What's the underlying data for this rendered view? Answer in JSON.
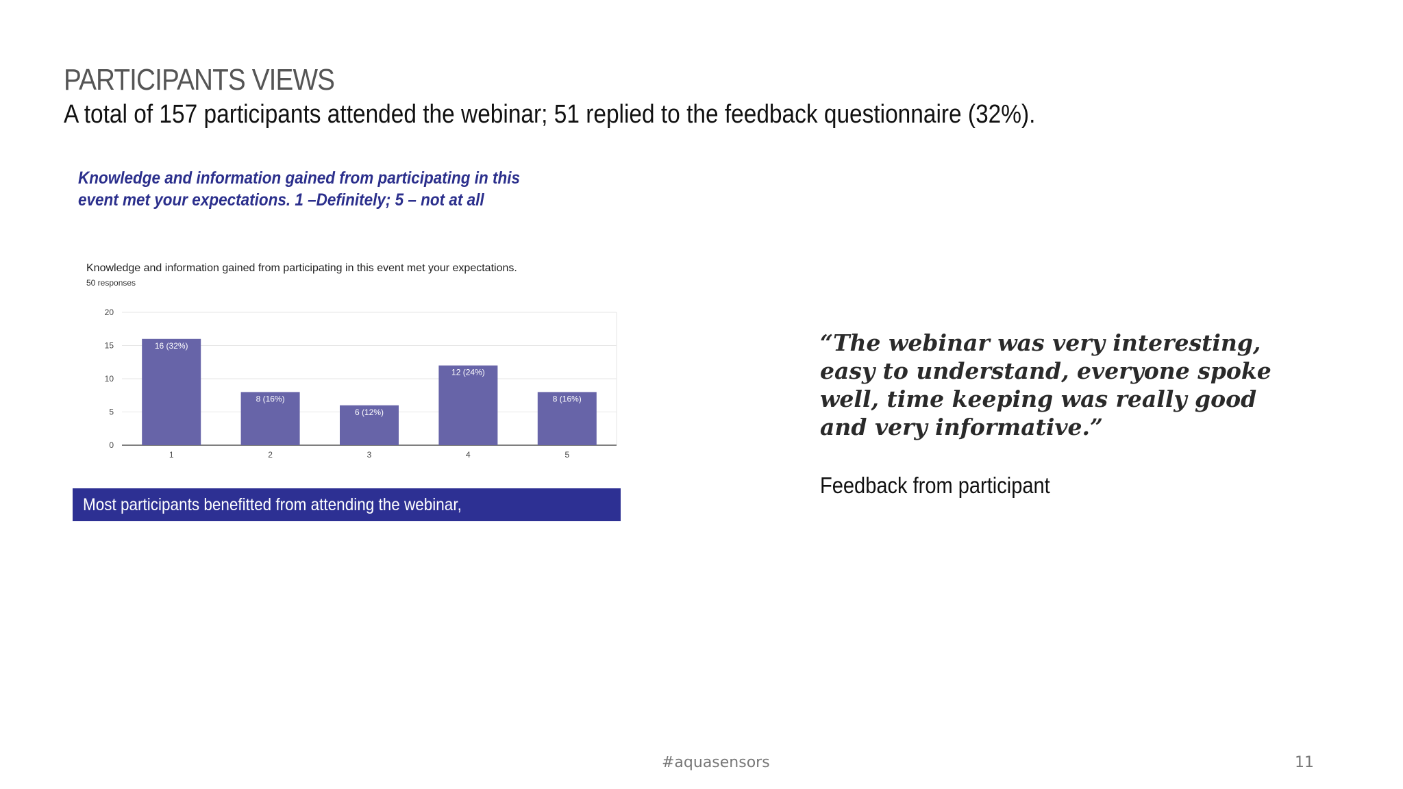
{
  "slide": {
    "title": "PARTICIPANTS VIEWS",
    "subtitle": "A total of 157 participants attended the webinar; 51 replied to the feedback questionnaire (32%).",
    "question_heading": "Knowledge and information gained from participating in this event met your expectations. 1 –Definitely; 5 – not at all",
    "conclusion": "Most participants benefitted from attending the webinar,",
    "quote": "“The webinar was very interesting, easy to understand, everyone spoke well, time keeping was really good and very informative.”",
    "quote_attribution": "Feedback from participant",
    "hashtag": "#aquasensors",
    "page_number": "11"
  },
  "chart_data": {
    "type": "bar",
    "title": "Knowledge and information gained from participating in this event met your expectations.",
    "subtitle": "50 responses",
    "categories": [
      "1",
      "2",
      "3",
      "4",
      "5"
    ],
    "values": [
      16,
      8,
      6,
      12,
      8
    ],
    "data_labels": [
      "16 (32%)",
      "8 (16%)",
      "6 (12%)",
      "12 (24%)",
      "8 (16%)"
    ],
    "yticks": [
      0,
      5,
      10,
      15,
      20
    ],
    "ylim": [
      0,
      20
    ],
    "xlabel": "",
    "ylabel": "",
    "grid": true,
    "bar_color": "#6764a8",
    "gridline_color": "#e6e6e6",
    "axis_color": "#555555"
  }
}
